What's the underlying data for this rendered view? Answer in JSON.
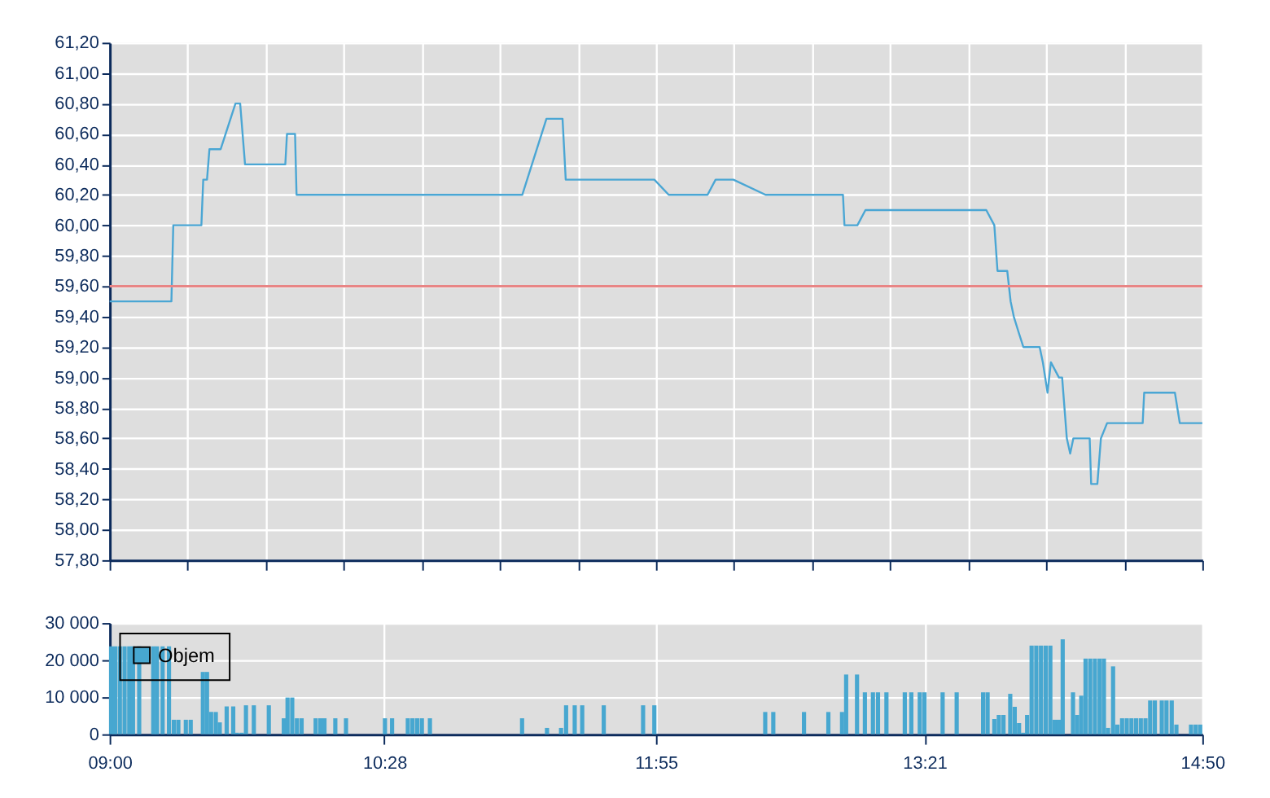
{
  "chart_data": [
    {
      "type": "line",
      "series": [
        {
          "color": "#4aa6d4",
          "x": [
            9.0,
            9.33,
            9.34,
            9.49,
            9.5,
            9.52,
            9.533,
            9.593,
            9.672,
            9.697,
            9.723,
            9.938,
            9.947,
            9.99,
            9.998,
            11.203,
            11.332,
            11.418,
            11.435,
            11.908,
            11.985,
            12.192,
            12.235,
            12.33,
            12.502,
            12.915,
            12.923,
            12.992,
            13.035,
            13.68,
            13.723,
            13.74,
            13.792,
            13.81,
            13.827,
            13.852,
            13.878,
            13.965,
            13.982,
            14.007,
            14.025,
            14.068,
            14.085,
            14.11,
            14.128,
            14.145,
            14.232,
            14.24,
            14.273,
            14.292,
            14.325,
            14.515,
            14.523,
            14.687,
            14.713,
            14.8333
          ],
          "values": [
            59.5,
            59.5,
            60.0,
            60.0,
            60.3,
            60.3,
            60.5,
            60.5,
            60.8,
            60.8,
            60.4,
            60.4,
            60.6,
            60.6,
            60.2,
            60.2,
            60.7,
            60.7,
            60.3,
            60.3,
            60.2,
            60.2,
            60.3,
            60.3,
            60.2,
            60.2,
            60.0,
            60.0,
            60.1,
            60.1,
            60.0,
            59.7,
            59.7,
            59.5,
            59.4,
            59.3,
            59.2,
            59.2,
            59.1,
            58.9,
            59.1,
            59.0,
            59.0,
            58.6,
            58.5,
            58.6,
            58.6,
            58.3,
            58.3,
            58.6,
            58.7,
            58.7,
            58.9,
            58.9,
            58.7,
            58.7
          ]
        }
      ],
      "xlim": [
        9.0,
        14.8333
      ],
      "xticks": [
        {
          "value": 9.0,
          "label": null
        },
        {
          "value": 9.4167,
          "label": null
        },
        {
          "value": 9.8333,
          "label": null
        },
        {
          "value": 10.25,
          "label": null
        },
        {
          "value": 10.6667,
          "label": null
        },
        {
          "value": 11.0833,
          "label": null
        },
        {
          "value": 11.5,
          "label": null
        },
        {
          "value": 11.9167,
          "label": null
        },
        {
          "value": 12.3333,
          "label": null
        },
        {
          "value": 12.75,
          "label": null
        },
        {
          "value": 13.1667,
          "label": null
        },
        {
          "value": 13.5833,
          "label": null
        },
        {
          "value": 14.0,
          "label": null
        },
        {
          "value": 14.4167,
          "label": null
        },
        {
          "value": 14.8333,
          "label": null
        }
      ],
      "ylim": [
        57.8,
        61.2
      ],
      "yticks": [
        {
          "value": 57.8,
          "label": "57,80"
        },
        {
          "value": 58.0,
          "label": "58,00"
        },
        {
          "value": 58.2,
          "label": "58,20"
        },
        {
          "value": 58.4,
          "label": "58,40"
        },
        {
          "value": 58.6,
          "label": "58,60"
        },
        {
          "value": 58.8,
          "label": "58,80"
        },
        {
          "value": 59.0,
          "label": "59,00"
        },
        {
          "value": 59.2,
          "label": "59,20"
        },
        {
          "value": 59.4,
          "label": "59,40"
        },
        {
          "value": 59.6,
          "label": "59,60"
        },
        {
          "value": 59.8,
          "label": "59,80"
        },
        {
          "value": 60.0,
          "label": "60,00"
        },
        {
          "value": 60.2,
          "label": "60,20"
        },
        {
          "value": 60.4,
          "label": "60,40"
        },
        {
          "value": 60.6,
          "label": "60,60"
        },
        {
          "value": 60.8,
          "label": "60,80"
        },
        {
          "value": 61.0,
          "label": "61,00"
        },
        {
          "value": 61.2,
          "label": "61,20"
        }
      ],
      "ref_lines": [
        {
          "axis": "y",
          "value": 59.6,
          "color": "#e88585"
        }
      ],
      "grid": true,
      "tick_labels": "y"
    },
    {
      "type": "bar",
      "series": [
        {
          "name": "Objem",
          "color": "#47a7d0",
          "x": [
            9.008,
            9.03,
            9.055,
            9.08,
            9.105,
            9.125,
            9.158,
            9.233,
            9.253,
            9.283,
            9.317,
            9.343,
            9.367,
            9.407,
            9.433,
            9.498,
            9.52,
            9.542,
            9.567,
            9.588,
            9.625,
            9.66,
            9.68,
            9.705,
            9.728,
            9.77,
            9.85,
            9.93,
            9.95,
            9.975,
            10.0,
            10.025,
            10.1,
            10.125,
            10.147,
            10.205,
            10.262,
            10.47,
            10.508,
            10.592,
            10.617,
            10.642,
            10.667,
            10.71,
            11.202,
            11.335,
            11.41,
            11.437,
            11.483,
            11.523,
            11.638,
            11.848,
            11.908,
            12.5,
            12.543,
            12.707,
            12.837,
            12.91,
            12.932,
            12.99,
            13.032,
            13.075,
            13.102,
            13.147,
            13.245,
            13.28,
            13.325,
            13.35,
            13.447,
            13.522,
            13.663,
            13.687,
            13.723,
            13.747,
            13.772,
            13.808,
            13.832,
            13.855,
            13.877,
            13.898,
            13.922,
            13.947,
            13.972,
            13.997,
            14.022,
            14.045,
            14.067,
            14.088,
            14.143,
            14.165,
            14.187,
            14.21,
            14.235,
            14.26,
            14.285,
            14.308,
            14.33,
            14.357,
            14.38,
            14.405,
            14.43,
            14.455,
            14.48,
            14.505,
            14.53,
            14.555,
            14.58,
            14.617,
            14.642,
            14.67,
            14.695,
            14.773,
            14.798,
            14.822
          ],
          "values": [
            23700,
            23700,
            23700,
            23700,
            23700,
            23700,
            23700,
            23700,
            23700,
            23700,
            23700,
            3900,
            3900,
            3900,
            3900,
            16800,
            16800,
            6000,
            6000,
            3200,
            7500,
            7500,
            400,
            400,
            7800,
            7800,
            7800,
            4300,
            9900,
            9900,
            4300,
            4300,
            4300,
            4300,
            4300,
            4300,
            4300,
            4300,
            4300,
            4300,
            4300,
            4300,
            4300,
            4300,
            4300,
            1700,
            1700,
            7800,
            7800,
            7800,
            7800,
            7800,
            7800,
            6000,
            6000,
            6000,
            6000,
            6000,
            16100,
            16100,
            11300,
            11300,
            11300,
            11300,
            11300,
            11300,
            11300,
            11300,
            11300,
            11300,
            11300,
            11300,
            4100,
            5200,
            5200,
            10900,
            7400,
            3000,
            400,
            5200,
            23900,
            23900,
            23900,
            23900,
            23900,
            3900,
            3900,
            25600,
            11300,
            5200,
            10400,
            20400,
            20400,
            20400,
            20400,
            20400,
            1700,
            18300,
            2600,
            4300,
            4300,
            4300,
            4300,
            4300,
            4300,
            9100,
            9100,
            9100,
            9100,
            9100,
            2600,
            2600,
            2600,
            2600
          ]
        }
      ],
      "xlim": [
        9.0,
        14.8333
      ],
      "xticks": [
        {
          "value": 9.0,
          "label": "09:00"
        },
        {
          "value": 10.4667,
          "label": "10:28"
        },
        {
          "value": 11.9167,
          "label": "11:55"
        },
        {
          "value": 13.35,
          "label": "13:21"
        },
        {
          "value": 14.8333,
          "label": "14:50"
        }
      ],
      "ylim": [
        0,
        30000
      ],
      "yticks": [
        {
          "value": 0,
          "label": "0"
        },
        {
          "value": 10000,
          "label": "10 000"
        },
        {
          "value": 20000,
          "label": "20 000"
        },
        {
          "value": 30000,
          "label": "30 000"
        }
      ],
      "grid": true,
      "legend": "top left"
    }
  ]
}
